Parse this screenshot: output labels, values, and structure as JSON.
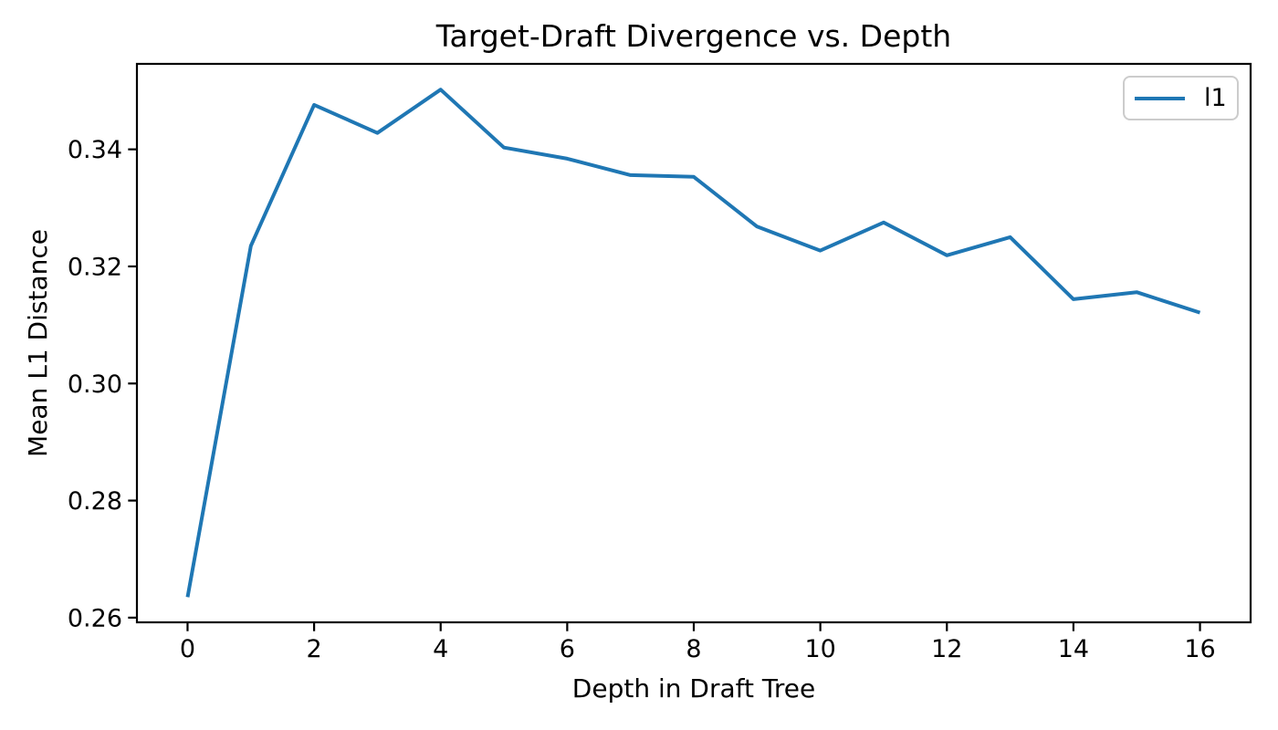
{
  "chart_data": {
    "type": "line",
    "title": "Target-Draft Divergence vs. Depth",
    "xlabel": "Depth in Draft Tree",
    "ylabel": "Mean L1 Distance",
    "x": [
      0,
      1,
      2,
      3,
      4,
      5,
      6,
      7,
      8,
      9,
      10,
      11,
      12,
      13,
      14,
      15,
      16
    ],
    "series": [
      {
        "name": "l1",
        "color": "#1f77b4",
        "values": [
          0.2635,
          0.3235,
          0.3476,
          0.3428,
          0.3502,
          0.3403,
          0.3384,
          0.3356,
          0.3353,
          0.3268,
          0.3227,
          0.3275,
          0.3219,
          0.325,
          0.3144,
          0.3156,
          0.3121
        ]
      }
    ],
    "xlim": [
      -0.8,
      16.8
    ],
    "ylim": [
      0.2592,
      0.3546
    ],
    "x_ticks": [
      0,
      2,
      4,
      6,
      8,
      10,
      12,
      14,
      16
    ],
    "x_tick_labels": [
      "0",
      "2",
      "4",
      "6",
      "8",
      "10",
      "12",
      "14",
      "16"
    ],
    "y_ticks": [
      0.26,
      0.28,
      0.3,
      0.32,
      0.34
    ],
    "y_tick_labels": [
      "0.26",
      "0.28",
      "0.30",
      "0.32",
      "0.34"
    ],
    "grid": false,
    "legend_position": "upper right",
    "axis_color": "#000000"
  }
}
